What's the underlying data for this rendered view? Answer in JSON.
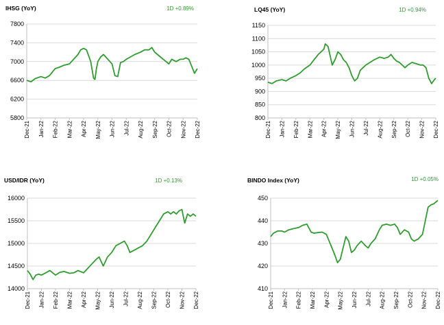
{
  "chart_data": [
    {
      "type": "line",
      "title": "IHSG (YoY)",
      "change_label": "1D +0.89%",
      "color": "#2e9c2e",
      "ylim": [
        5800,
        7800
      ],
      "yticks": [
        5800,
        6200,
        6600,
        7000,
        7400,
        7800
      ],
      "categories": [
        "Dec-21",
        "Jan-22",
        "Feb-22",
        "Mar-22",
        "Apr-22",
        "May-22",
        "Jun-22",
        "Jul-22",
        "Aug-22",
        "Sep-22",
        "Oct-22",
        "Nov-22",
        "Dec-22"
      ],
      "x": [
        0,
        0.3,
        0.6,
        1,
        1.3,
        1.6,
        2,
        2.3,
        2.6,
        3,
        3.3,
        3.6,
        3.8,
        4,
        4.2,
        4.5,
        4.7,
        4.8,
        4.9,
        5,
        5.2,
        5.4,
        5.7,
        6,
        6.2,
        6.4,
        6.6,
        6.8,
        7,
        7.3,
        7.6,
        8,
        8.3,
        8.6,
        8.8,
        9,
        9.2,
        9.4,
        9.6,
        9.8,
        10,
        10.2,
        10.5,
        10.8,
        11,
        11.2,
        11.4,
        11.6,
        11.8,
        12
      ],
      "values": [
        6600,
        6570,
        6640,
        6680,
        6650,
        6700,
        6850,
        6880,
        6920,
        6950,
        7050,
        7150,
        7250,
        7280,
        7250,
        7000,
        6650,
        6620,
        6850,
        7000,
        7100,
        7150,
        7050,
        6950,
        6700,
        6680,
        6980,
        7000,
        7050,
        7100,
        7150,
        7200,
        7250,
        7250,
        7300,
        7200,
        7150,
        7100,
        7050,
        7000,
        6950,
        7050,
        7000,
        7050,
        7050,
        7080,
        7050,
        6900,
        6750,
        6850
      ],
      "xlabel": "",
      "ylabel": ""
    },
    {
      "type": "line",
      "title": "LQ45 (YoY)",
      "change_label": "1D +0.94%",
      "color": "#2e9c2e",
      "ylim": [
        800,
        1150
      ],
      "yticks": [
        800,
        850,
        900,
        950,
        1000,
        1050,
        1100,
        1150
      ],
      "categories": [
        "Dec-21",
        "Jan-22",
        "Feb-22",
        "Mar-22",
        "Apr-22",
        "May-22",
        "Jun-22",
        "Jul-22",
        "Aug-22",
        "Sep-22",
        "Oct-22",
        "Nov-22",
        "Dec-22"
      ],
      "x": [
        0,
        0.3,
        0.6,
        1,
        1.3,
        1.6,
        2,
        2.3,
        2.6,
        3,
        3.3,
        3.6,
        3.8,
        4,
        4.1,
        4.3,
        4.6,
        4.8,
        5,
        5.2,
        5.4,
        5.6,
        5.8,
        6,
        6.2,
        6.4,
        6.6,
        6.8,
        7,
        7.3,
        7.6,
        8,
        8.3,
        8.6,
        8.8,
        9,
        9.2,
        9.4,
        9.6,
        9.8,
        10,
        10.3,
        10.6,
        10.9,
        11.1,
        11.3,
        11.5,
        11.7,
        11.9,
        12
      ],
      "values": [
        935,
        930,
        940,
        945,
        940,
        950,
        960,
        970,
        985,
        1000,
        1020,
        1040,
        1050,
        1060,
        1080,
        1070,
        1000,
        1020,
        1050,
        1040,
        1020,
        1010,
        990,
        960,
        940,
        950,
        980,
        990,
        1000,
        1010,
        1020,
        1030,
        1025,
        1030,
        1040,
        1025,
        1015,
        1010,
        1000,
        990,
        1000,
        1010,
        1005,
        1000,
        1000,
        990,
        950,
        930,
        945,
        950
      ],
      "xlabel": "",
      "ylabel": ""
    },
    {
      "type": "line",
      "title": "USD/IDR  (YoY)",
      "change_label": "1D +0.13%",
      "color": "#2e9c2e",
      "ylim": [
        14000,
        16000
      ],
      "yticks": [
        14000,
        14500,
        15000,
        15500,
        16000
      ],
      "categories": [
        "Dec-21",
        "Jan-22",
        "Feb-22",
        "Mar-22",
        "Apr-22",
        "May-22",
        "Jun-22",
        "Jul-22",
        "Aug-22",
        "Sep-22",
        "Oct-22",
        "Nov-22",
        "Dec-22"
      ],
      "x": [
        0,
        0.2,
        0.4,
        0.6,
        0.8,
        1,
        1.3,
        1.6,
        2,
        2.3,
        2.6,
        3,
        3.3,
        3.6,
        4,
        4.3,
        4.6,
        4.9,
        5.1,
        5.4,
        5.7,
        6,
        6.3,
        6.6,
        6.9,
        7.1,
        7.3,
        7.6,
        7.9,
        8.2,
        8.5,
        8.8,
        9.1,
        9.4,
        9.7,
        10,
        10.2,
        10.4,
        10.6,
        10.8,
        11,
        11.1,
        11.2,
        11.4,
        11.6,
        11.8,
        12
      ],
      "values": [
        14400,
        14320,
        14200,
        14300,
        14320,
        14300,
        14350,
        14400,
        14300,
        14360,
        14380,
        14340,
        14350,
        14400,
        14350,
        14450,
        14550,
        14650,
        14700,
        14500,
        14700,
        14800,
        14950,
        15000,
        15050,
        14950,
        14800,
        14850,
        14900,
        14950,
        15050,
        15200,
        15350,
        15500,
        15650,
        15700,
        15650,
        15700,
        15650,
        15720,
        15750,
        15600,
        15450,
        15650,
        15600,
        15650,
        15600
      ],
      "xlabel": "",
      "ylabel": ""
    },
    {
      "type": "line",
      "title": "BINDO Index (YoY)",
      "change_label": "1D +0.05%",
      "color": "#2e9c2e",
      "ylim": [
        410,
        450
      ],
      "yticks": [
        410,
        420,
        430,
        440,
        450
      ],
      "categories": [
        "Dec-21",
        "Jan-22",
        "Feb-22",
        "Mar-22",
        "Apr-22",
        "May-22",
        "Jun-22",
        "Jul-22",
        "Aug-22",
        "Sep-22",
        "Oct-22",
        "Nov-22",
        "Dec-22"
      ],
      "x": [
        0,
        0.2,
        0.5,
        0.8,
        1,
        1.3,
        1.6,
        2,
        2.3,
        2.6,
        2.9,
        3.1,
        3.4,
        3.7,
        4,
        4.2,
        4.4,
        4.6,
        4.8,
        5,
        5.2,
        5.4,
        5.6,
        5.8,
        6,
        6.2,
        6.5,
        6.8,
        7,
        7.2,
        7.5,
        7.8,
        8,
        8.3,
        8.6,
        8.9,
        9.1,
        9.3,
        9.6,
        9.9,
        10.1,
        10.3,
        10.6,
        10.9,
        11.1,
        11.3,
        11.5,
        11.7,
        11.9,
        12
      ],
      "values": [
        433,
        434.5,
        435.5,
        435.5,
        435,
        436,
        436.5,
        437,
        438,
        438.5,
        435,
        434.5,
        434.8,
        435,
        434,
        431,
        428,
        425,
        421.5,
        423,
        428,
        433,
        431,
        426,
        427,
        429,
        431,
        429,
        428,
        430,
        432,
        436,
        438,
        438.5,
        438,
        438.5,
        437,
        434,
        436,
        435,
        432,
        431,
        432,
        434,
        440,
        446,
        447,
        447.5,
        448.5,
        449
      ],
      "xlabel": "",
      "ylabel": ""
    }
  ]
}
